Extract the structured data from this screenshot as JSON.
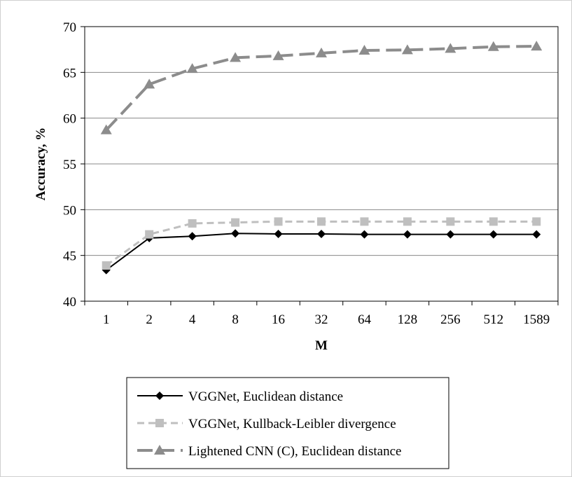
{
  "chart_data": {
    "type": "line",
    "title": "",
    "xlabel": "M",
    "ylabel": "Accuracy, %",
    "ylim": [
      40,
      70
    ],
    "yticks": [
      40,
      45,
      50,
      55,
      60,
      65,
      70
    ],
    "categories": [
      "1",
      "2",
      "4",
      "8",
      "16",
      "32",
      "64",
      "128",
      "256",
      "512",
      "1589"
    ],
    "grid": "horizontal",
    "legend_position": "bottom",
    "series": [
      {
        "name": "VGGNet, Euclidean distance",
        "values": [
          43.4,
          46.9,
          47.1,
          47.4,
          47.35,
          47.35,
          47.3,
          47.3,
          47.3,
          47.3,
          47.3
        ],
        "color": "#000000",
        "line_style": "solid",
        "marker": "diamond"
      },
      {
        "name": "VGGNet, Kullback-Leibler divergence",
        "values": [
          43.9,
          47.3,
          48.5,
          48.6,
          48.7,
          48.7,
          48.7,
          48.7,
          48.7,
          48.7,
          48.7
        ],
        "color": "#bfbfbf",
        "line_style": "dashed",
        "marker": "square"
      },
      {
        "name": "Lightened CNN (C), Euclidean distance",
        "values": [
          58.7,
          63.7,
          65.4,
          66.6,
          66.8,
          67.1,
          67.4,
          67.45,
          67.6,
          67.8,
          67.85
        ],
        "color": "#8c8c8c",
        "line_style": "dashed",
        "marker": "triangle"
      }
    ]
  }
}
